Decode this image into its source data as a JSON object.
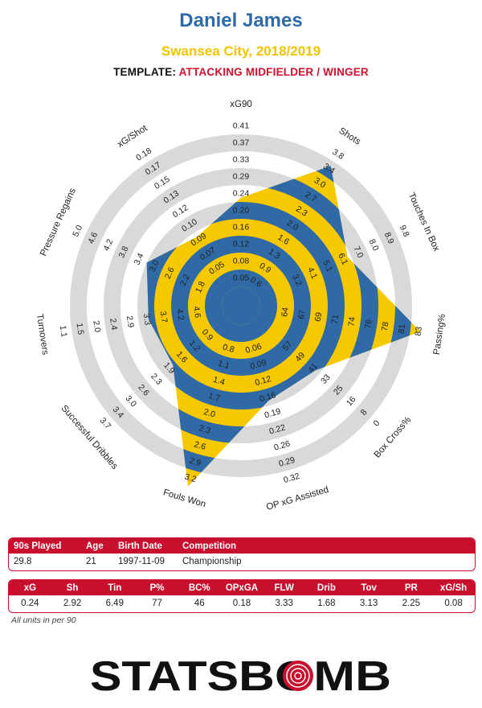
{
  "header": {
    "player": "Daniel James",
    "team_season": "Swansea City, 2018/2019",
    "template_label": "TEMPLATE:",
    "template_value": "ATTACKING MIDFIELDER / WINGER"
  },
  "colors": {
    "blue": "#2f6aa7",
    "yellow": "#f5c800",
    "ring_grey": "#d9d9d9",
    "accent_red": "#c8102e",
    "title_blue": "#2e6aa8"
  },
  "chart_data": {
    "type": "radar",
    "axes": [
      {
        "label": "xG90",
        "value": 0.24,
        "ticks": [
          "0.05",
          "0.08",
          "0.12",
          "0.16",
          "0.20",
          "0.24",
          "0.29",
          "0.33",
          "0.37",
          "0.41"
        ]
      },
      {
        "label": "Shots",
        "value": 2.92,
        "ticks": [
          "0.6",
          "0.9",
          "1.3",
          "1.6",
          "2.0",
          "2.3",
          "2.7",
          "3.0",
          "3.4",
          "3.8"
        ]
      },
      {
        "label": "Touches In Box",
        "value": 6.49,
        "ticks": [
          "3.2",
          "4.1",
          "5.1",
          "6.1",
          "7.0",
          "8.0",
          "8.9",
          "9.8"
        ]
      },
      {
        "label": "Passing%",
        "value": 77,
        "ticks": [
          "64",
          "67",
          "69",
          "71",
          "74",
          "76",
          "78",
          "81",
          "83"
        ]
      },
      {
        "label": "Box Cross%",
        "value": 46,
        "ticks": [
          "57",
          "49",
          "41",
          "33",
          "25",
          "16",
          "8",
          "0"
        ]
      },
      {
        "label": "OP xG Assisted",
        "value": 0.18,
        "ticks": [
          "0.06",
          "0.09",
          "0.12",
          "0.16",
          "0.19",
          "0.22",
          "0.26",
          "0.29",
          "0.32"
        ]
      },
      {
        "label": "Fouls Won",
        "value": 3.33,
        "ticks": [
          "0.8",
          "1.1",
          "1.4",
          "1.7",
          "2.0",
          "2.3",
          "2.6",
          "2.9",
          "3.2"
        ]
      },
      {
        "label": "Successful Dribbles",
        "value": 1.68,
        "ticks": [
          "0.9",
          "1.2",
          "1.6",
          "1.9",
          "2.3",
          "2.6",
          "3.0",
          "3.4",
          "3.7"
        ]
      },
      {
        "label": "Turnovers",
        "value": 3.13,
        "ticks": [
          "4.6",
          "4.2",
          "3.7",
          "3.3",
          "2.9",
          "2.4",
          "2.0",
          "1.5",
          "1.1"
        ]
      },
      {
        "label": "Pressure Regains",
        "value": 2.25,
        "ticks": [
          "1.8",
          "2.2",
          "2.6",
          "3.0",
          "3.4",
          "3.8",
          "4.2",
          "4.6",
          "5.0"
        ]
      },
      {
        "label": "xG/Shot",
        "value": 0.08,
        "ticks": [
          "0.05",
          "0.07",
          "0.09",
          "0.10",
          "0.12",
          "0.13",
          "0.15",
          "0.17",
          "0.18"
        ]
      }
    ],
    "shape_fraction": [
      0.525,
      0.87,
      0.58,
      0.96,
      0.47,
      0.47,
      1.0,
      0.42,
      0.44,
      0.5,
      0.37
    ]
  },
  "info_table": {
    "headers": [
      "90s Played",
      "Age",
      "Birth Date",
      "Competition"
    ],
    "values": [
      "29.8",
      "21",
      "1997-11-09",
      "Championship"
    ]
  },
  "stats_table": {
    "headers": [
      "xG",
      "Sh",
      "Tin",
      "P%",
      "BC%",
      "OPxGA",
      "FLW",
      "Drib",
      "Tov",
      "PR",
      "xG/Sh"
    ],
    "values": [
      "0.24",
      "2.92",
      "6.49",
      "77",
      "46",
      "0.18",
      "3.33",
      "1.68",
      "3.13",
      "2.25",
      "0.08"
    ]
  },
  "footer_note": "All units in per 90",
  "logo": {
    "part1": "STATS",
    "part2": "BOMB"
  }
}
